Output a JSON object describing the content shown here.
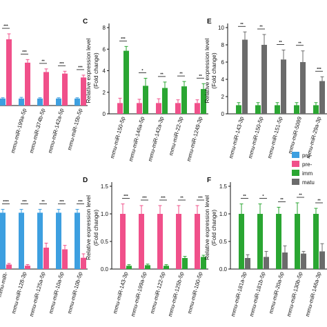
{
  "colors": {
    "blue": "#3d9fe0",
    "pink": "#f0508a",
    "green": "#2aa632",
    "gray": "#6b6b6b",
    "axis": "#111111"
  },
  "legend": {
    "items": [
      {
        "label": "pro-",
        "color": "#3d9fe0"
      },
      {
        "label": "pre-",
        "color": "#f0508a"
      },
      {
        "label": "imm",
        "color": "#2aa632"
      },
      {
        "label": "matu",
        "color": "#6b6b6b"
      }
    ]
  },
  "chart_data": [
    {
      "id": "panel-a-top",
      "type": "bar",
      "title": "",
      "xlabel": "",
      "ylabel": "",
      "ylim": [
        0,
        10
      ],
      "categories": [
        "",
        "mmu-miR-199a-5p",
        "mmu-miR-374b-5p",
        "mmu-miR-142a-5p",
        "mmu-miR-15b-5p"
      ],
      "series": [
        {
          "values": [
            0.9,
            0.9,
            0.9,
            0.9,
            0.9
          ],
          "errors": [
            0.1,
            0.15,
            0.1,
            0.1,
            0.1
          ],
          "color": "#3d9fe0"
        },
        {
          "values": [
            8.5,
            5.5,
            4.3,
            4.1,
            3.6
          ],
          "errors": [
            0.7,
            0.4,
            0.4,
            0.3,
            0.3
          ],
          "color": "#f0508a"
        }
      ],
      "significance": [
        "***",
        "***",
        "**",
        "***",
        "***"
      ]
    },
    {
      "id": "panel-a-bottom",
      "type": "bar",
      "title": "",
      "xlabel": "",
      "ylabel": "",
      "ylim": [
        0,
        1.2
      ],
      "categories": [
        "mmu-miR-",
        "mmu-miR-128-3p",
        "mmu-miR-125a-5p",
        "mmu-miR-10a-5p",
        "mmu-miR-10b-5p"
      ],
      "series": [
        {
          "values": [
            1.0,
            1.0,
            1.0,
            1.0,
            1.0
          ],
          "errors": [
            0.06,
            0.06,
            0.06,
            0.06,
            0.06
          ],
          "color": "#3d9fe0"
        },
        {
          "values": [
            0.08,
            0.06,
            0.38,
            0.35,
            0.2
          ],
          "errors": [
            0.02,
            0.02,
            0.08,
            0.07,
            0.07
          ],
          "color": "#f0508a"
        }
      ],
      "significance": [
        "****",
        "***",
        "**",
        "***",
        "***"
      ]
    },
    {
      "id": "panel-c",
      "panel": "C",
      "type": "bar",
      "ylabel": "Relative expression level",
      "ylabel2": "(Fold change)",
      "ylim": [
        0,
        8
      ],
      "yticks": [
        0,
        2,
        4,
        6,
        8
      ],
      "categories": [
        "mmu-miR-150-5p",
        "mmu-miR-146a-5p",
        "mmu-miR-142a-3p",
        "mmu-miR-22-3p",
        "mmu-miR-1249-3p"
      ],
      "series": [
        {
          "values": [
            1.0,
            1.0,
            1.0,
            1.0,
            1.0
          ],
          "errors": [
            0.45,
            0.35,
            0.4,
            0.3,
            0.3
          ],
          "color": "#f0508a"
        },
        {
          "values": [
            5.85,
            2.6,
            2.4,
            2.55,
            2.3
          ],
          "errors": [
            0.4,
            0.7,
            0.55,
            0.45,
            0.5
          ],
          "color": "#2aa632"
        }
      ],
      "significance": [
        "***",
        "*",
        "**",
        "**",
        "**"
      ]
    },
    {
      "id": "panel-e",
      "panel": "E",
      "type": "bar",
      "ylabel": "Relative expression level",
      "ylabel2": "(Fold change)",
      "ylim": [
        0,
        10
      ],
      "yticks": [
        0,
        2,
        4,
        6,
        8,
        10
      ],
      "categories": [
        "mmu-miR-143-3p",
        "mmu-miR-150-5p",
        "mmu-miR-151-5p",
        "mmu-miR-5099",
        "mmu-miR-29a-3p"
      ],
      "series": [
        {
          "values": [
            1.0,
            1.0,
            1.0,
            1.0,
            1.0
          ],
          "errors": [
            0.3,
            0.3,
            0.3,
            0.3,
            0.3
          ],
          "color": "#2aa632"
        },
        {
          "values": [
            8.6,
            8.0,
            6.3,
            6.0,
            3.8
          ],
          "errors": [
            0.9,
            1.2,
            1.1,
            1.3,
            0.5
          ],
          "color": "#6b6b6b"
        }
      ],
      "significance": [
        "**",
        "**",
        "**",
        "**",
        "***"
      ]
    },
    {
      "id": "panel-d",
      "panel": "D",
      "type": "bar",
      "ylabel": "Relative expression level",
      "ylabel2": "(Fold change)",
      "ylim": [
        0,
        1.5
      ],
      "yticks": [
        0.0,
        0.5,
        1.0,
        1.5
      ],
      "categories": [
        "mmu-miR-143-3p",
        "mmu-miR-199a-5p",
        "mmu-miR-122-5p",
        "mmu-miR-125b-5p",
        "mmu-miR-100-5p"
      ],
      "series": [
        {
          "values": [
            1.0,
            1.0,
            1.0,
            1.0,
            1.0
          ],
          "errors": [
            0.18,
            0.15,
            0.15,
            0.15,
            0.15
          ],
          "color": "#f0508a"
        },
        {
          "values": [
            0.06,
            0.07,
            0.06,
            0.2,
            0.22
          ],
          "errors": [
            0.02,
            0.02,
            0.02,
            0.03,
            0.03
          ],
          "color": "#2aa632"
        }
      ],
      "significance": [
        "***",
        "***",
        "***",
        "**",
        "***"
      ]
    },
    {
      "id": "panel-f",
      "panel": "F",
      "type": "bar",
      "ylabel": "Relative expression level",
      "ylabel2": "(Fold change)",
      "ylim": [
        0,
        1.5
      ],
      "yticks": [
        0.0,
        0.5,
        1.0,
        1.5
      ],
      "categories": [
        "mmu-miR-181a-3p",
        "mmu-miR-181b-5p",
        "mmu-miR-20a-5p",
        "mmu-miR-130b-5p",
        "mmu-miR-146a-3p"
      ],
      "series": [
        {
          "values": [
            1.0,
            1.0,
            1.0,
            1.0,
            1.0
          ],
          "errors": [
            0.18,
            0.18,
            0.12,
            0.2,
            0.1
          ],
          "color": "#2aa632"
        },
        {
          "values": [
            0.2,
            0.22,
            0.3,
            0.28,
            0.32
          ],
          "errors": [
            0.06,
            0.1,
            0.12,
            0.04,
            0.14
          ],
          "color": "#6b6b6b"
        }
      ],
      "significance": [
        "**",
        "*",
        "**",
        "**",
        "**"
      ]
    }
  ]
}
